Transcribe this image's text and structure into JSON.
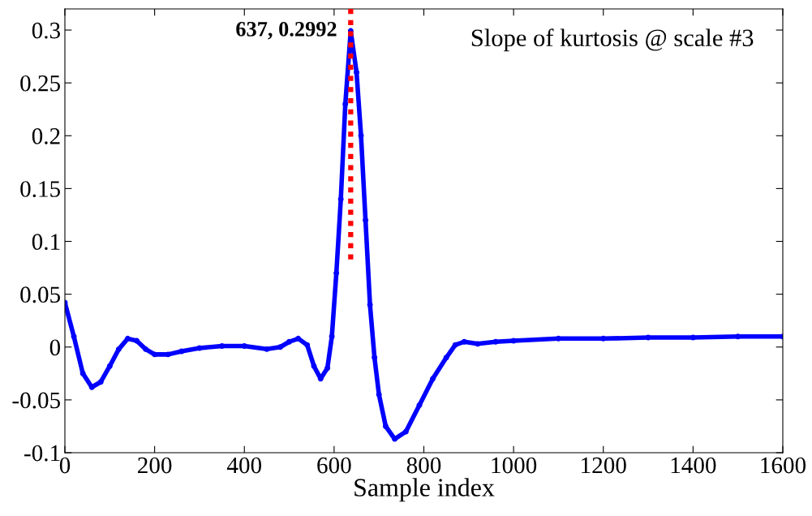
{
  "chart_data": {
    "type": "line",
    "xlabel": "Sample index",
    "xlim": [
      0,
      1600
    ],
    "xticks": [
      0,
      200,
      400,
      600,
      800,
      1000,
      1200,
      1400,
      1600
    ],
    "ylim": [
      -0.1,
      0.32
    ],
    "yticks": [
      {
        "value": -0.1,
        "label": "-0.1"
      },
      {
        "value": -0.05,
        "label": "-0.05"
      },
      0,
      0.05,
      0.1,
      0.15,
      0.2,
      0.25,
      0.3
    ],
    "grid": false,
    "legend": false,
    "marker": "circle",
    "line_style": "solid",
    "series": [
      {
        "color": "#0000ff",
        "x": [
          0,
          20,
          40,
          60,
          80,
          100,
          120,
          140,
          160,
          180,
          200,
          230,
          260,
          300,
          350,
          400,
          450,
          480,
          500,
          520,
          540,
          555,
          570,
          585,
          595,
          605,
          615,
          625,
          637,
          650,
          660,
          670,
          680,
          690,
          700,
          715,
          735,
          760,
          790,
          820,
          850,
          870,
          890,
          920,
          960,
          1000,
          1100,
          1200,
          1300,
          1400,
          1500,
          1600
        ],
        "values": [
          0.042,
          0.01,
          -0.025,
          -0.038,
          -0.033,
          -0.018,
          -0.002,
          0.008,
          0.006,
          -0.002,
          -0.007,
          -0.007,
          -0.004,
          -0.001,
          0.001,
          0.001,
          -0.002,
          0.0,
          0.005,
          0.008,
          0.002,
          -0.018,
          -0.03,
          -0.02,
          0.01,
          0.07,
          0.14,
          0.23,
          0.2992,
          0.26,
          0.2,
          0.12,
          0.04,
          -0.01,
          -0.045,
          -0.075,
          -0.087,
          -0.08,
          -0.055,
          -0.03,
          -0.01,
          0.002,
          0.005,
          0.003,
          0.005,
          0.006,
          0.008,
          0.008,
          0.009,
          0.009,
          0.01,
          0.01
        ]
      },
      {
        "color": "#ff0000",
        "x": [
          637,
          637
        ],
        "values": [
          0.083,
          0.32
        ],
        "marker": "none",
        "line_style": "dotted"
      }
    ],
    "annotations": [
      {
        "text": "637, 0.2992",
        "x": 637,
        "y": 0.2992
      },
      "Slope of kurtosis @ scale #3"
    ]
  }
}
